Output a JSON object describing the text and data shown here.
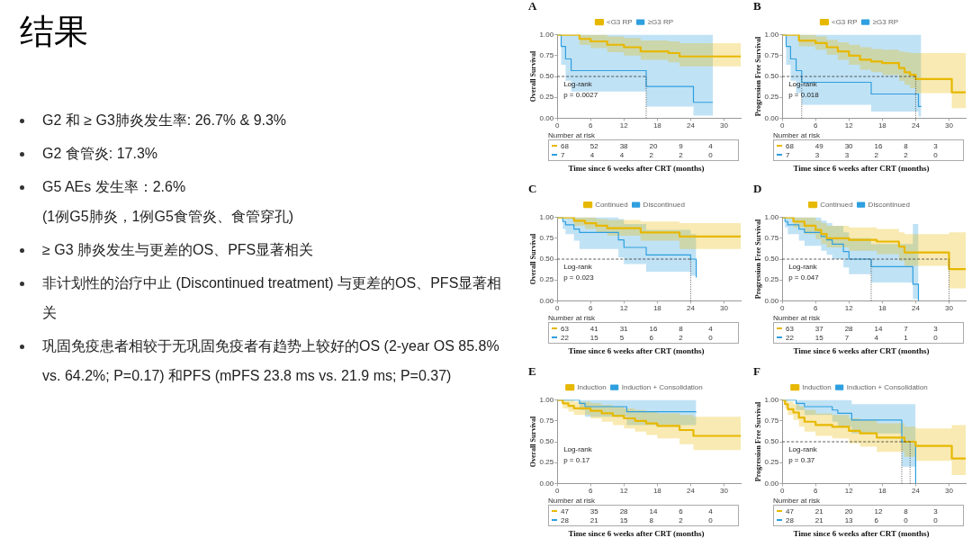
{
  "chart_data": [
    {
      "type": "other",
      "title": "结果",
      "annotations": [
        "G2 和 ≥ G3肺炎发生率: 26.7% & 9.3%",
        "G2 食管炎: 17.3%",
        "G5 AEs 发生率：2.6%\n(1例G5肺炎，1例G5食管炎、食管穿孔)",
        "≥ G3 肺炎发生与更差的OS、PFS显著相关",
        "非计划性的治疗中止 (Discontinued treatment) 与更差的OS、PFS显著相关",
        "巩固免疫患者相较于无巩固免疫者有趋势上较好的OS (2-year OS 85.8% vs. 64.2%; P=0.17) 和PFS (mPFS 23.8 ms vs. 21.9 ms; P=0.37)"
      ]
    },
    {
      "type": "step",
      "title": "A",
      "ylabel": "Overall Survival",
      "xlabel": "Time since 6 weeks after CRT (months)",
      "legend": "top",
      "marker": "none",
      "xlim": [
        0,
        33
      ],
      "xticks": [
        0,
        6,
        12,
        18,
        24,
        30
      ],
      "ylim": [
        0,
        1
      ],
      "yticks": [
        {
          "value": 0,
          "label": "0.00"
        },
        {
          "value": 0.25,
          "label": "0.25"
        },
        {
          "value": 0.5,
          "label": "0.50"
        },
        {
          "value": 0.75,
          "label": "0.75"
        },
        {
          "value": 1,
          "label": "1.00"
        }
      ],
      "series": [
        {
          "name": "<G3 RP",
          "color": "#e7b800",
          "x": [
            0,
            4,
            6,
            9,
            12,
            15,
            20,
            22,
            33
          ],
          "values": [
            1,
            0.95,
            0.92,
            0.88,
            0.85,
            0.8,
            0.78,
            0.74,
            0.74
          ],
          "lower": [
            1,
            0.88,
            0.84,
            0.79,
            0.75,
            0.7,
            0.67,
            0.62,
            0.62
          ],
          "upper": [
            1,
            1,
            1,
            0.98,
            0.96,
            0.93,
            0.92,
            0.9,
            0.9
          ]
        },
        {
          "name": "≥G3 RP",
          "color": "#2e9fdf",
          "x": [
            0,
            0.7,
            1.5,
            2.5,
            16,
            24.5,
            28
          ],
          "values": [
            1,
            0.86,
            0.71,
            0.57,
            0.38,
            0.19,
            0.19
          ],
          "lower": [
            1,
            0.64,
            0.45,
            0.32,
            0.14,
            0.03,
            0.03
          ],
          "upper": [
            1,
            1,
            1,
            1,
            1,
            1,
            1
          ]
        }
      ],
      "ref_lines": [
        {
          "axis": "y",
          "value": 0.5,
          "line_style": "dashed"
        },
        {
          "axis": "x",
          "value": 16,
          "line_style": "dotted"
        }
      ],
      "annotations": [
        "Log-rank\np = 0.0027",
        "Number at risk",
        "68 52 38 20 9 4",
        "7 4 4 2 2 0"
      ]
    },
    {
      "type": "step",
      "title": "B",
      "ylabel": "Progression Free Survival",
      "xlabel": "Time since 6 weeks after CRT (months)",
      "legend": "top",
      "marker": "none",
      "xlim": [
        0,
        33
      ],
      "xticks": [
        0,
        6,
        12,
        18,
        24,
        30
      ],
      "ylim": [
        0,
        1
      ],
      "yticks": [
        {
          "value": 0,
          "label": "0.00"
        },
        {
          "value": 0.25,
          "label": "0.25"
        },
        {
          "value": 0.5,
          "label": "0.50"
        },
        {
          "value": 0.75,
          "label": "0.75"
        },
        {
          "value": 1,
          "label": "1.00"
        }
      ],
      "series": [
        {
          "name": "<G3 RP",
          "color": "#e7b800",
          "x": [
            0,
            3,
            6,
            8,
            10,
            12,
            14,
            16,
            18,
            21,
            22,
            23,
            24,
            30.5,
            33
          ],
          "values": [
            1,
            0.93,
            0.9,
            0.85,
            0.8,
            0.75,
            0.7,
            0.68,
            0.66,
            0.6,
            0.55,
            0.52,
            0.47,
            0.31,
            0.31
          ],
          "lower": [
            1,
            0.86,
            0.82,
            0.76,
            0.7,
            0.64,
            0.58,
            0.55,
            0.52,
            0.45,
            0.4,
            0.36,
            0.3,
            0.12,
            0.12
          ],
          "upper": [
            1,
            1,
            0.98,
            0.94,
            0.91,
            0.88,
            0.85,
            0.83,
            0.82,
            0.8,
            0.79,
            0.78,
            0.78,
            0.78,
            0.78
          ]
        },
        {
          "name": "≥G3 RP",
          "color": "#2e9fdf",
          "x": [
            0,
            0.7,
            1.5,
            2.5,
            3.5,
            16,
            24.5,
            25
          ],
          "values": [
            1,
            0.86,
            0.71,
            0.57,
            0.43,
            0.29,
            0.14,
            0.14
          ],
          "lower": [
            1,
            0.64,
            0.45,
            0.3,
            0.16,
            0.08,
            0.02,
            0.02
          ],
          "upper": [
            1,
            1,
            1,
            1,
            1,
            1,
            1,
            1
          ]
        }
      ],
      "ref_lines": [
        {
          "axis": "y",
          "value": 0.5,
          "line_style": "dashed"
        },
        {
          "axis": "x",
          "value": 3.5,
          "line_style": "dotted"
        },
        {
          "axis": "x",
          "value": 24,
          "line_style": "dotted"
        }
      ],
      "annotations": [
        "Log-rank\np = 0.018",
        "Number at risk",
        "68 49 30 16 8 3",
        "7 3 3 2 2 0"
      ]
    },
    {
      "type": "step",
      "title": "C",
      "ylabel": "Overall Survival",
      "xlabel": "Time since 6 weeks after CRT (months)",
      "legend": "top",
      "marker": "none",
      "xlim": [
        0,
        33
      ],
      "xticks": [
        0,
        6,
        12,
        18,
        24,
        30
      ],
      "ylim": [
        0,
        1
      ],
      "yticks": [
        {
          "value": 0,
          "label": "0.00"
        },
        {
          "value": 0.25,
          "label": "0.25"
        },
        {
          "value": 0.5,
          "label": "0.50"
        },
        {
          "value": 0.75,
          "label": "0.75"
        },
        {
          "value": 1,
          "label": "1.00"
        }
      ],
      "series": [
        {
          "name": "Continued",
          "color": "#e7b800",
          "x": [
            0,
            3,
            5,
            7,
            9,
            15,
            22,
            33
          ],
          "values": [
            1,
            0.96,
            0.93,
            0.9,
            0.87,
            0.82,
            0.77,
            0.77
          ],
          "lower": [
            1,
            0.9,
            0.86,
            0.82,
            0.78,
            0.72,
            0.62,
            0.62
          ],
          "upper": [
            1,
            1,
            1,
            0.98,
            0.97,
            0.95,
            0.93,
            0.93
          ]
        },
        {
          "name": "Discontinued",
          "color": "#2e9fdf",
          "x": [
            0,
            1,
            1.5,
            3,
            4,
            11,
            12,
            16,
            24,
            25
          ],
          "values": [
            1,
            0.95,
            0.91,
            0.86,
            0.82,
            0.73,
            0.64,
            0.55,
            0.5,
            0.28
          ],
          "lower": [
            1,
            0.86,
            0.8,
            0.72,
            0.62,
            0.52,
            0.44,
            0.35,
            0.3,
            0.05
          ],
          "upper": [
            1,
            1,
            1,
            1,
            1,
            0.98,
            0.92,
            0.85,
            0.8,
            1
          ]
        }
      ],
      "ref_lines": [
        {
          "axis": "y",
          "value": 0.5,
          "line_style": "dashed"
        },
        {
          "axis": "x",
          "value": 24,
          "line_style": "dotted"
        }
      ],
      "annotations": [
        "Log-rank\np = 0.023",
        "Number at risk",
        "63 41 31 16 8 4",
        "22 15 5 6 2 0"
      ]
    },
    {
      "type": "step",
      "title": "D",
      "ylabel": "Progression Free Survival",
      "xlabel": "Time since 6 weeks after CRT (months)",
      "legend": "top",
      "marker": "none",
      "xlim": [
        0,
        33
      ],
      "xticks": [
        0,
        6,
        12,
        18,
        24,
        30
      ],
      "ylim": [
        0,
        1
      ],
      "yticks": [
        {
          "value": 0,
          "label": "0.00"
        },
        {
          "value": 0.25,
          "label": "0.25"
        },
        {
          "value": 0.5,
          "label": "0.50"
        },
        {
          "value": 0.75,
          "label": "0.75"
        },
        {
          "value": 1,
          "label": "1.00"
        }
      ],
      "series": [
        {
          "name": "Continued",
          "color": "#e7b800",
          "x": [
            0,
            2,
            4,
            6,
            7,
            8,
            12,
            17,
            21,
            22,
            30,
            33
          ],
          "values": [
            1,
            0.95,
            0.9,
            0.85,
            0.8,
            0.75,
            0.73,
            0.71,
            0.65,
            0.58,
            0.38,
            0.38
          ],
          "lower": [
            1,
            0.88,
            0.8,
            0.74,
            0.68,
            0.64,
            0.6,
            0.56,
            0.48,
            0.42,
            0.15,
            0.15
          ],
          "upper": [
            1,
            1,
            1,
            0.96,
            0.93,
            0.9,
            0.88,
            0.86,
            0.82,
            0.8,
            0.82,
            0.82
          ]
        },
        {
          "name": "Discontinued",
          "color": "#2e9fdf",
          "x": [
            0,
            0.5,
            1,
            3,
            4,
            7,
            8,
            9,
            11,
            12,
            16,
            23.5,
            24.5
          ],
          "values": [
            1,
            0.95,
            0.91,
            0.86,
            0.82,
            0.77,
            0.73,
            0.68,
            0.59,
            0.5,
            0.41,
            0.2,
            0
          ],
          "lower": [
            1,
            0.88,
            0.8,
            0.72,
            0.66,
            0.6,
            0.55,
            0.5,
            0.4,
            0.32,
            0.22,
            0.02,
            0
          ],
          "upper": [
            1,
            1,
            1,
            1,
            1,
            0.96,
            0.93,
            0.9,
            0.82,
            0.75,
            0.68,
            0.92,
            0.92
          ]
        }
      ],
      "ref_lines": [
        {
          "axis": "y",
          "value": 0.5,
          "line_style": "dashed"
        },
        {
          "axis": "x",
          "value": 16,
          "line_style": "dotted"
        },
        {
          "axis": "x",
          "value": 30,
          "line_style": "dotted"
        }
      ],
      "annotations": [
        "Log-rank\np = 0.047",
        "Number at risk",
        "63 37 28 14 7 3",
        "22 15 7 4 1 0"
      ]
    },
    {
      "type": "step",
      "title": "E",
      "ylabel": "Overall Survival",
      "xlabel": "Time since 6 weeks after CRT (months)",
      "legend": "top",
      "marker": "none",
      "xlim": [
        0,
        33
      ],
      "xticks": [
        0,
        6,
        12,
        18,
        24,
        30
      ],
      "ylim": [
        0,
        1
      ],
      "yticks": [
        {
          "value": 0,
          "label": "0.00"
        },
        {
          "value": 0.25,
          "label": "0.25"
        },
        {
          "value": 0.5,
          "label": "0.50"
        },
        {
          "value": 0.75,
          "label": "0.75"
        },
        {
          "value": 1,
          "label": "1.00"
        }
      ],
      "series": [
        {
          "name": "Induction",
          "color": "#e7b800",
          "x": [
            0,
            1,
            2,
            3,
            6,
            8,
            10,
            12,
            14,
            16,
            18,
            22,
            24.5,
            33
          ],
          "values": [
            1,
            0.96,
            0.93,
            0.9,
            0.87,
            0.84,
            0.81,
            0.78,
            0.75,
            0.72,
            0.69,
            0.64,
            0.57,
            0.57
          ],
          "lower": [
            1,
            0.9,
            0.86,
            0.82,
            0.78,
            0.74,
            0.7,
            0.66,
            0.62,
            0.58,
            0.54,
            0.47,
            0.4,
            0.4
          ],
          "upper": [
            1,
            1,
            1,
            0.98,
            0.96,
            0.94,
            0.92,
            0.9,
            0.88,
            0.86,
            0.84,
            0.82,
            0.8,
            0.8
          ]
        },
        {
          "name": "Induction + Consolidation",
          "color": "#2e9fdf",
          "x": [
            0,
            4,
            5,
            12.5,
            25
          ],
          "values": [
            1,
            0.96,
            0.92,
            0.86,
            0.86
          ],
          "lower": [
            1,
            0.88,
            0.8,
            0.7,
            0.7
          ],
          "upper": [
            1,
            1,
            1,
            1,
            1
          ]
        }
      ],
      "annotations": [
        "Log-rank\np = 0.17",
        "Number at risk",
        "47 35 28 14 6 4",
        "28 21 15 8 2 0"
      ]
    },
    {
      "type": "step",
      "title": "F",
      "ylabel": "Progression Free Survival",
      "xlabel": "Time since 6 weeks after CRT (months)",
      "legend": "top",
      "marker": "none",
      "xlim": [
        0,
        33
      ],
      "xticks": [
        0,
        6,
        12,
        18,
        24,
        30
      ],
      "ylim": [
        0,
        1
      ],
      "yticks": [
        {
          "value": 0,
          "label": "0.00"
        },
        {
          "value": 0.25,
          "label": "0.25"
        },
        {
          "value": 0.5,
          "label": "0.50"
        },
        {
          "value": 0.75,
          "label": "0.75"
        },
        {
          "value": 1,
          "label": "1.00"
        }
      ],
      "series": [
        {
          "name": "Induction",
          "color": "#e7b800",
          "x": [
            0,
            0.5,
            1,
            2,
            3,
            4,
            6,
            9,
            12,
            14,
            17,
            22,
            24,
            30.5,
            33
          ],
          "values": [
            1,
            0.95,
            0.89,
            0.85,
            0.79,
            0.74,
            0.7,
            0.68,
            0.63,
            0.6,
            0.55,
            0.5,
            0.45,
            0.3,
            0.3
          ],
          "lower": [
            1,
            0.9,
            0.82,
            0.76,
            0.68,
            0.62,
            0.57,
            0.54,
            0.48,
            0.44,
            0.38,
            0.32,
            0.27,
            0.1,
            0.1
          ],
          "upper": [
            1,
            1,
            0.98,
            0.95,
            0.92,
            0.88,
            0.84,
            0.82,
            0.78,
            0.76,
            0.72,
            0.68,
            0.66,
            0.7,
            0.7
          ]
        },
        {
          "name": "Induction + Consolidation",
          "color": "#2e9fdf",
          "x": [
            0,
            2.5,
            4,
            9,
            10,
            12.5,
            21.5,
            24
          ],
          "values": [
            1,
            0.96,
            0.92,
            0.88,
            0.84,
            0.76,
            0.5,
            0
          ],
          "lower": [
            1,
            0.88,
            0.82,
            0.74,
            0.68,
            0.6,
            0.2,
            0
          ],
          "upper": [
            1,
            1,
            1,
            1,
            1,
            0.95,
            0.95,
            0.95
          ]
        }
      ],
      "ref_lines": [
        {
          "axis": "y",
          "value": 0.5,
          "line_style": "dashed"
        },
        {
          "axis": "x",
          "value": 21.5,
          "line_style": "dotted"
        },
        {
          "axis": "x",
          "value": 23,
          "line_style": "dotted"
        }
      ],
      "annotations": [
        "Log-rank\np = 0.37",
        "Number at risk",
        "47 21 20 12 8 3",
        "28 21 13 6 0 0"
      ]
    }
  ]
}
